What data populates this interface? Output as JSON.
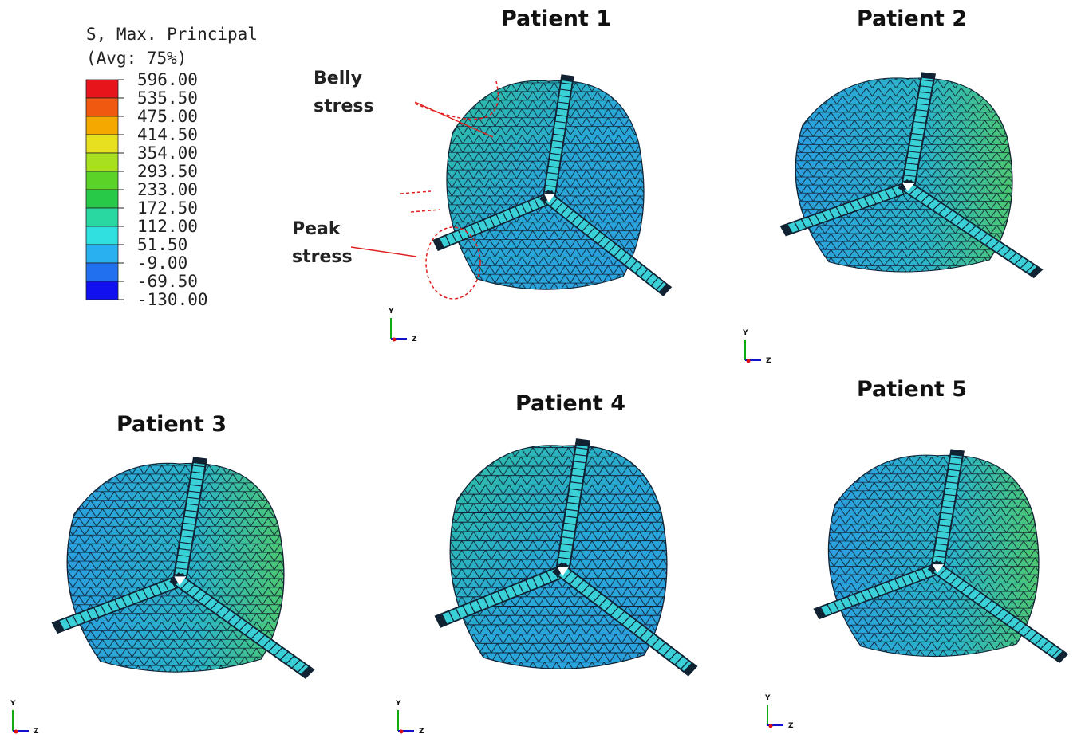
{
  "legend": {
    "title": [
      "S, Max. Principal",
      "(Avg: 75%)"
    ],
    "labels": [
      "596.00",
      "535.50",
      "475.00",
      "414.50",
      "354.00",
      "293.50",
      "233.00",
      "172.50",
      "112.00",
      "51.50",
      "-9.00",
      "-69.50",
      "-130.00"
    ]
  },
  "panels": [
    {
      "title": "Patient 1",
      "axis_y": "Y",
      "axis_z": "Z"
    },
    {
      "title": "Patient 2",
      "axis_y": "Y",
      "axis_z": "Z"
    },
    {
      "title": "Patient 3",
      "axis_y": "Y",
      "axis_z": "Z"
    },
    {
      "title": "Patient 4",
      "axis_y": "Y",
      "axis_z": "Z"
    },
    {
      "title": "Patient 5",
      "axis_y": "Y",
      "axis_z": "Z"
    }
  ],
  "annotations": [
    [
      "Belly",
      "stress"
    ],
    [
      "Peak",
      "stress"
    ]
  ]
}
